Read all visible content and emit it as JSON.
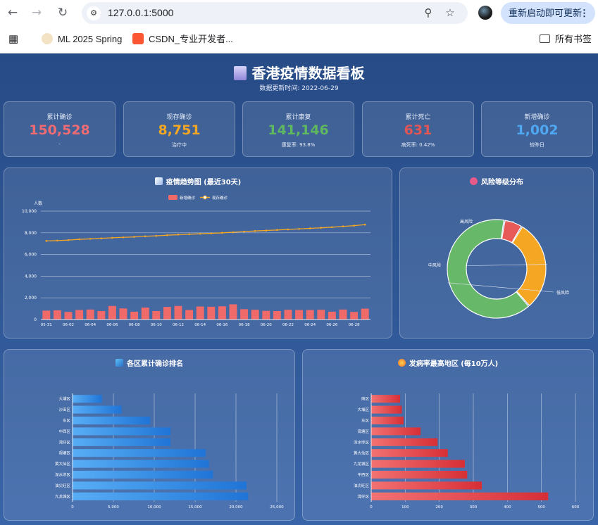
{
  "browser": {
    "url": "127.0.0.1:5000",
    "update_label": "重新启动即可更新",
    "bookmarks": [
      {
        "label": "ML 2025 Spring"
      },
      {
        "label": "CSDN_专业开发者..."
      }
    ],
    "all_bookmarks": "所有书签"
  },
  "dashboard": {
    "title": "香港疫情数据看板",
    "subtitle": "数据更新时间: 2022-06-29",
    "cards": [
      {
        "label": "累计确诊",
        "value": "150,528",
        "sub": "-",
        "color": "#ef6b73"
      },
      {
        "label": "现存确诊",
        "value": "8,751",
        "sub": "治疗中",
        "color": "#f5a623"
      },
      {
        "label": "累计康复",
        "value": "141,146",
        "sub": "康复率: 93.8%",
        "color": "#5fb85f"
      },
      {
        "label": "累计死亡",
        "value": "631",
        "sub": "病死率: 0.42%",
        "color": "#e05555"
      },
      {
        "label": "新增确诊",
        "value": "1,002",
        "sub": "较昨日",
        "color": "#4ea7f0"
      }
    ],
    "trend_panel_title": "疫情趋势图 (最近30天)",
    "risk_panel_title": "风险等级分布",
    "district_panel_title": "各区累计确诊排名",
    "incidence_panel_title": "发病率最高地区 (每10万人)"
  },
  "chart_data": [
    {
      "type": "bar",
      "title": "疫情趋势图 (最近30天)",
      "ylabel": "人数",
      "ylim": [
        0,
        10000
      ],
      "y_ticks": [
        "0",
        "2,000",
        "4,000",
        "6,000",
        "8,000",
        "10,000"
      ],
      "x_tick_labels": [
        "05-31",
        "06-02",
        "06-04",
        "06-06",
        "06-08",
        "06-10",
        "06-12",
        "06-14",
        "06-16",
        "06-18",
        "06-20",
        "06-22",
        "06-24",
        "06-26",
        "06-28"
      ],
      "legend": [
        "新增确诊",
        "现存确诊"
      ],
      "legend_placement": "top-center",
      "series": [
        {
          "name": "新增确诊",
          "type": "bar",
          "color": "#f06a6a",
          "values": [
            820,
            850,
            700,
            880,
            920,
            780,
            1250,
            1020,
            720,
            1100,
            780,
            1160,
            1250,
            880,
            1200,
            1180,
            1220,
            1400,
            950,
            900,
            800,
            780,
            900,
            880,
            880,
            900,
            720,
            920,
            700,
            1002
          ]
        },
        {
          "name": "现存确诊",
          "type": "line",
          "color": "#f5a623",
          "values": [
            7250,
            7280,
            7330,
            7400,
            7440,
            7490,
            7540,
            7580,
            7620,
            7680,
            7720,
            7780,
            7830,
            7870,
            7910,
            7950,
            8000,
            8050,
            8110,
            8170,
            8210,
            8260,
            8310,
            8360,
            8410,
            8460,
            8520,
            8590,
            8660,
            8751
          ]
        }
      ]
    },
    {
      "type": "pie",
      "title": "风险等级分布",
      "labels": [
        "高风险",
        "中风险",
        "低风险"
      ],
      "values": [
        6,
        30,
        64
      ],
      "colors": [
        "#e85a5a",
        "#f5a623",
        "#68b86a"
      ]
    },
    {
      "type": "bar",
      "orientation": "horizontal",
      "title": "各区累计确诊排名",
      "categories": [
        "大埔区",
        "沙田区",
        "东区",
        "中西区",
        "湾仔区",
        "观塘区",
        "黄大仙区",
        "深水埗区",
        "油尖旺区",
        "九龙城区"
      ],
      "values": [
        3600,
        6000,
        9500,
        12000,
        12000,
        16300,
        16700,
        17200,
        21300,
        21500
      ],
      "xlim": [
        0,
        25000
      ],
      "x_ticks": [
        "0",
        "5,000",
        "10,000",
        "15,000",
        "20,000",
        "25,000"
      ],
      "color": "#3c8de6"
    },
    {
      "type": "bar",
      "orientation": "horizontal",
      "title": "发病率最高地区 (每10万人)",
      "categories": [
        "南区",
        "大埔区",
        "东区",
        "观塘区",
        "深水埗区",
        "黄大仙区",
        "九龙城区",
        "中西区",
        "油尖旺区",
        "湾仔区"
      ],
      "values": [
        85,
        90,
        95,
        145,
        195,
        225,
        275,
        282,
        325,
        520
      ],
      "xlim": [
        0,
        600
      ],
      "x_ticks": [
        "0",
        "100",
        "200",
        "300",
        "400",
        "500",
        "600"
      ],
      "color": "#e85050"
    }
  ]
}
